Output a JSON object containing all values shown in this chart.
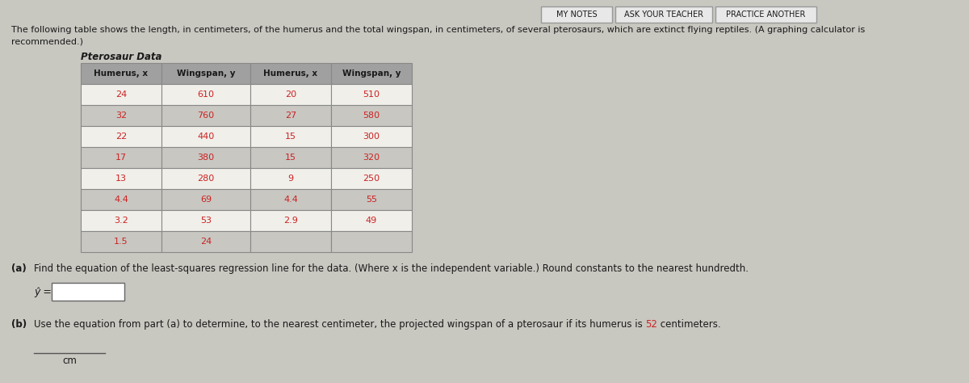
{
  "bg_color": "#c8c7c0",
  "content_bg": "#d8d7d0",
  "title_text_line1": "The following table shows the length, in centimeters, of the humerus and the total wingspan, in centimeters, of several pterosaurs, which are extinct flying reptiles. (A graphing calculator is",
  "title_text_line2": "recommended.)",
  "table_title": "Pterosaur Data",
  "col_headers": [
    "Humerus, x",
    "Wingspan, y",
    "Humerus, x",
    "Wingspan, y"
  ],
  "col1_x": [
    "24",
    "32",
    "22",
    "17",
    "13",
    "4.4",
    "3.2",
    "1.5"
  ],
  "col1_y": [
    "610",
    "760",
    "440",
    "380",
    "280",
    "69",
    "53",
    "24"
  ],
  "col2_x": [
    "20",
    "27",
    "15",
    "15",
    "9",
    "4.4",
    "2.9",
    ""
  ],
  "col2_y": [
    "510",
    "580",
    "300",
    "320",
    "250",
    "55",
    "49",
    ""
  ],
  "part_a_label": "(a)",
  "part_a_text": "Find the equation of the least-squares regression line for the data. (Where x is the independent variable.) Round constants to the nearest hundredth.",
  "yhat_label": "ŷ =",
  "part_b_label": "(b)",
  "part_b_text_before": "Use the equation from part (a) to determine, to the nearest centimeter, the projected wingspan of a pterosaur if its humerus is ",
  "part_b_highlight": "52",
  "part_b_text_after": " centimeters.",
  "cm_label": "cm",
  "button_notes": "MY NOTES",
  "button_ask": "ASK YOUR TEACHER",
  "button_practice": "PRACTICE ANOTHER",
  "header_bg": "#a0a0a0",
  "row_bg_white": "#f0efea",
  "row_bg_gray": "#c8c7c2",
  "table_border": "#888888",
  "text_color": "#1a1a1a",
  "red_color": "#cc2222",
  "button_bg": "#e8e8e8",
  "button_border": "#999999",
  "input_box_border": "#666666"
}
